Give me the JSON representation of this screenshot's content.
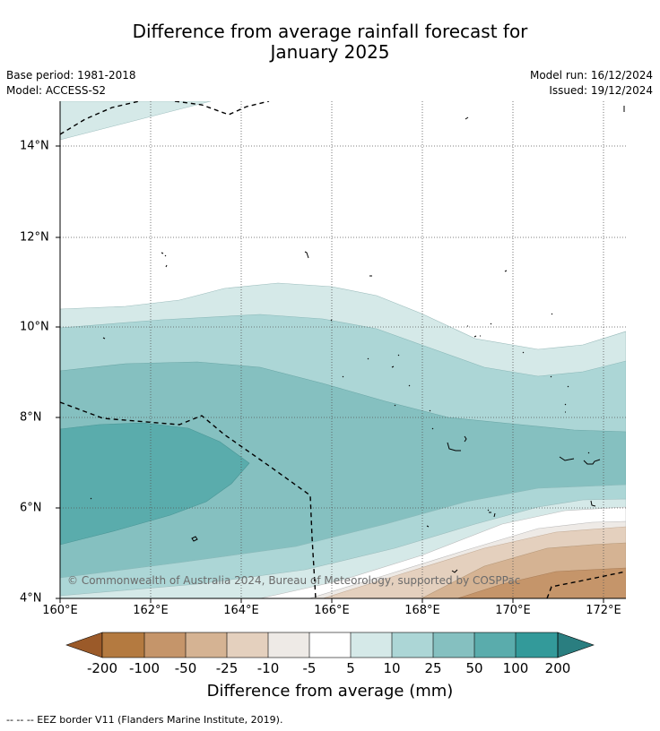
{
  "title_line1": "Difference from average rainfall forecast for",
  "title_line2": "January 2025",
  "base_period": "Base period: 1981-2018",
  "model": "Model: ACCESS-S2",
  "model_run": "Model run: 16/12/2024",
  "issued": "Issued: 19/12/2024",
  "copyright": "© Commonwealth of Australia 2024, Bureau of Meteorology, supported by COSPPac",
  "x_ticks": [
    "160°E",
    "162°E",
    "164°E",
    "166°E",
    "168°E",
    "170°E",
    "172°E"
  ],
  "y_ticks": [
    "14°N",
    "12°N",
    "10°N",
    "8°N",
    "6°N",
    "4°N"
  ],
  "colorbar": {
    "labels": [
      "-200",
      "-100",
      "-50",
      "-25",
      "-10",
      "-5",
      "5",
      "10",
      "25",
      "50",
      "100",
      "200"
    ],
    "colors": [
      "#9b5a29",
      "#b47a40",
      "#c5956a",
      "#d5b393",
      "#e4d0be",
      "#eeeae6",
      "#ffffff",
      "#d5e9e8",
      "#acd6d6",
      "#85c0c0",
      "#5aacac",
      "#339a9a",
      "#2a7e80"
    ],
    "title": "Difference from average (mm)"
  },
  "footnote": "--  --  -- EEZ border V11 (Flanders Marine Institute, 2019)."
}
